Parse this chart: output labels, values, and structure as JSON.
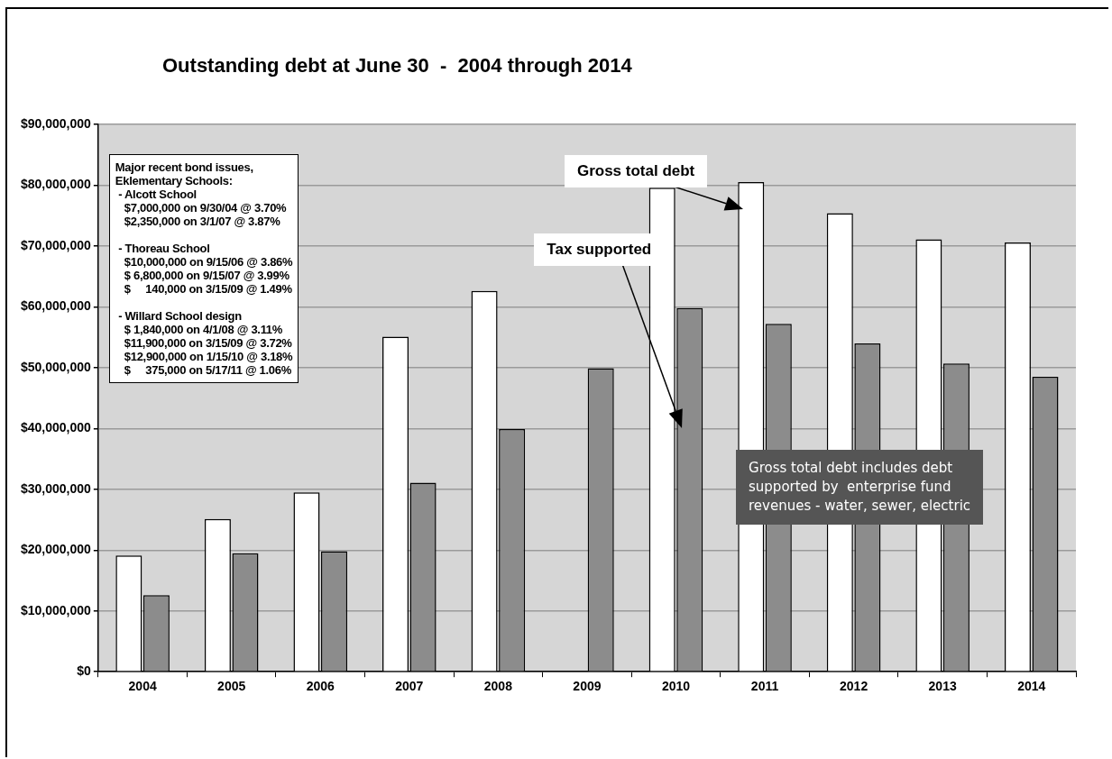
{
  "chart_data": {
    "type": "bar",
    "title": "Outstanding debt at June 30  -  2004 through 2014",
    "categories": [
      "2004",
      "2005",
      "2006",
      "2007",
      "2008",
      "2009",
      "2010",
      "2011",
      "2012",
      "2013",
      "2014"
    ],
    "series": [
      {
        "name": "Gross total debt",
        "color": "#ffffff",
        "values": [
          19100000.0,
          25100000.0,
          29500000.0,
          55100000.0,
          62600000.0,
          null,
          79600000.0,
          80500000.0,
          75400000.0,
          71100000.0,
          70600000.0
        ]
      },
      {
        "name": "Tax supported",
        "color": "#8c8c8c",
        "values": [
          12600000.0,
          19500000.0,
          19800000.0,
          31100000.0,
          39900000.0,
          49900000.0,
          59800000.0,
          57200000.0,
          54000000.0,
          50700000.0,
          48500000.0
        ]
      }
    ],
    "ylim": [
      0,
      90000000
    ],
    "yticks": [
      {
        "value": 0,
        "label": "$0"
      },
      {
        "value": 10000000,
        "label": "$10,000,000"
      },
      {
        "value": 20000000,
        "label": "$20,000,000"
      },
      {
        "value": 30000000,
        "label": "$30,000,000"
      },
      {
        "value": 40000000,
        "label": "$40,000,000"
      },
      {
        "value": 50000000,
        "label": "$50,000,000"
      },
      {
        "value": 60000000,
        "label": "$60,000,000"
      },
      {
        "value": 70000000,
        "label": "$70,000,000"
      },
      {
        "value": 80000000,
        "label": "$80,000,000"
      },
      {
        "value": 90000000,
        "label": "$90,000,000"
      }
    ],
    "grid": "y",
    "legend": false,
    "annotations": [
      "Major recent bond issues,\nEklementary Schools:\n - Alcott School\n   $7,000,000 on 9/30/04 @ 3.70%\n   $2,350,000 on 3/1/07 @ 3.87%\n\n - Thoreau School\n   $10,000,000 on 9/15/06 @ 3.86%\n   $ 6,800,000 on 9/15/07 @ 3.99%\n   $     140,000 on 3/15/09 @ 1.49%\n\n - Willard School design\n   $ 1,840,000 on 4/1/08 @ 3.11%\n   $11,900,000 on 3/15/09 @ 3.72%\n   $12,900,000 on 1/15/10 @ 3.18%\n   $     375,000 on 5/17/11 @ 1.06%",
      "Gross total debt includes debt\nsupported by  enterprise fund\nrevenues - water, sewer, electric"
    ]
  }
}
